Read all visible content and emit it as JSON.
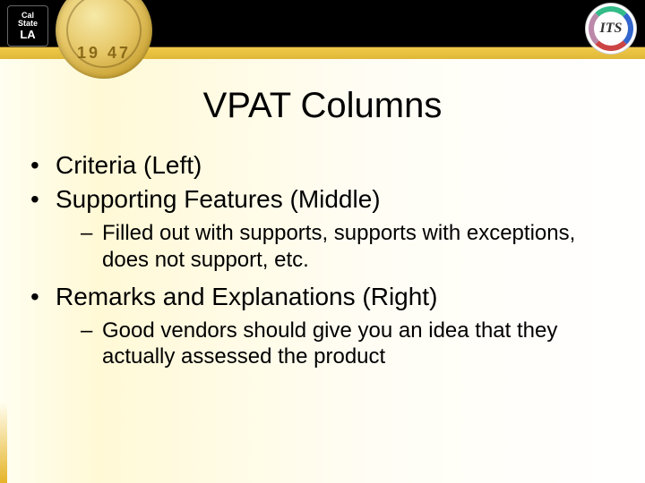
{
  "header": {
    "csula_logo_line1": "Cal",
    "csula_logo_line2": "State",
    "csula_logo_line3": "LA",
    "seal_year": "19 47",
    "its_label": "ITS"
  },
  "title": "VPAT Columns",
  "bullets": [
    {
      "level": 1,
      "text": "Criteria (Left)"
    },
    {
      "level": 1,
      "text": "Supporting Features (Middle)"
    },
    {
      "level": 2,
      "text": "Filled out with supports, supports with exceptions, does not support, etc."
    },
    {
      "level": 1,
      "text": "Remarks and Explanations (Right)"
    },
    {
      "level": 2,
      "text": "Good vendors should give you an idea that they actually assessed the product"
    }
  ],
  "colors": {
    "black": "#000000",
    "gold_top": "#f0c94a",
    "gold_bottom": "#e0b838",
    "bg_left": "#fffef0",
    "bg_right": "#ffffff"
  }
}
